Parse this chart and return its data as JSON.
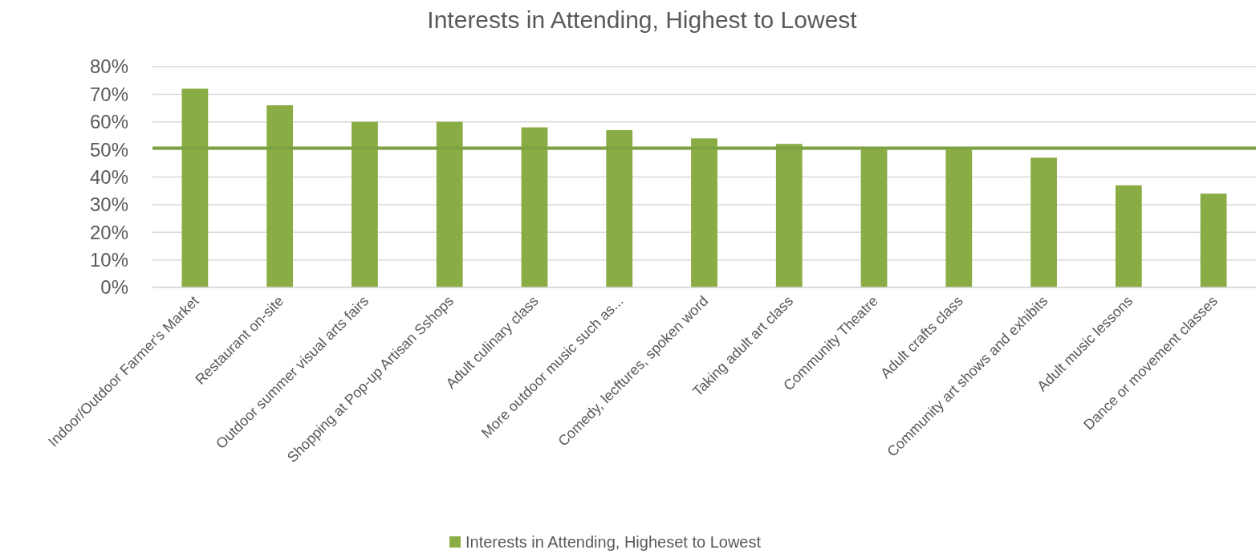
{
  "chart_data": {
    "type": "bar",
    "title": "Interests in Attending, Highest to Lowest",
    "categories": [
      "Indoor/Outdoor Farmer's Market",
      "Restaurant on-site",
      "Outdoor summer visual arts fairs",
      "Shopping at Pop-up Artisan Sshops",
      "Adult culinary class",
      "More outdoor music such as...",
      "Comedy, lecftures, spoken word",
      "Taking adult art class",
      "Community Theatre",
      "Adult crafts class",
      "Community art shows and exhibits",
      "Adult music lessons",
      "Dance or movement classes"
    ],
    "series": [
      {
        "name": "Interests in Attending, Higheset to Lowest",
        "color": "#8aac45",
        "values": [
          0.72,
          0.66,
          0.6,
          0.6,
          0.58,
          0.57,
          0.54,
          0.52,
          0.5,
          0.5,
          0.47,
          0.37,
          0.34
        ]
      }
    ],
    "ylim": [
      0,
      0.8
    ],
    "yticks": [
      {
        "value": 0,
        "label": "0%"
      },
      {
        "value": 0.1,
        "label": "10%"
      },
      {
        "value": 0.2,
        "label": "20%"
      },
      {
        "value": 0.3,
        "label": "30%"
      },
      {
        "value": 0.4,
        "label": "40%"
      },
      {
        "value": 0.5,
        "label": "50%"
      },
      {
        "value": 0.6,
        "label": "60%"
      },
      {
        "value": 0.7,
        "label": "70%"
      },
      {
        "value": 0.8,
        "label": "80%"
      }
    ],
    "ref_lines": [
      {
        "axis": "y",
        "value": 0.505,
        "color": "#7da243"
      }
    ],
    "grid": "y",
    "legend": "bottom"
  }
}
